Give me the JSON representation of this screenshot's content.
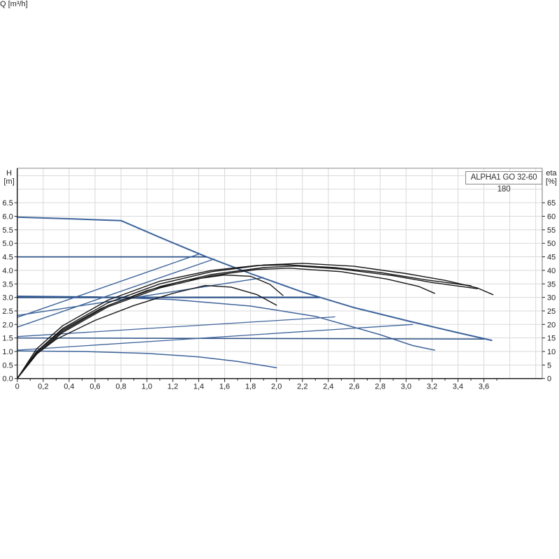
{
  "page": {
    "background": "#ffffff"
  },
  "chart_data": {
    "type": "line",
    "title": "ALPHA1 GO 32-60 180",
    "x_axis": {
      "label": "Q [m³/h]",
      "min": 0,
      "max": 4.05,
      "major_tick_step": 0.2,
      "minor_tick_step": 0.1,
      "tick_values": [
        0,
        0.2,
        0.4,
        0.6,
        0.8,
        1.0,
        1.2,
        1.4,
        1.6,
        1.8,
        2.0,
        2.2,
        2.4,
        2.6,
        2.8,
        3.0,
        3.2,
        3.4,
        3.6
      ],
      "tick_labels": [
        "0",
        "0,2",
        "0,4",
        "0,6",
        "0,8",
        "1,0",
        "1,2",
        "1,4",
        "1,6",
        "1,8",
        "2,0",
        "2,2",
        "2,4",
        "2,6",
        "2,8",
        "3,0",
        "3,2",
        "3,4",
        "3,6"
      ]
    },
    "y_axis_left": {
      "label": "H [m]",
      "label_line1": "H",
      "label_line2": "[m]",
      "min": 0,
      "max": 7.78,
      "tick_step": 0.5,
      "tick_values": [
        0,
        0.5,
        1.0,
        1.5,
        2.0,
        2.5,
        3.0,
        3.5,
        4.0,
        4.5,
        5.0,
        5.5,
        6.0,
        6.5
      ],
      "tick_labels": [
        "0.0",
        "0.5",
        "1.0",
        "1.5",
        "2.0",
        "2.5",
        "3.0",
        "3.5",
        "4.0",
        "4.5",
        "5.0",
        "5.5",
        "6.0",
        "6.5"
      ]
    },
    "y_axis_right": {
      "label": "eta [%]",
      "label_line1": "eta",
      "label_line2": "[%]",
      "min": 0,
      "max": 77.8,
      "tick_step": 5,
      "tick_values": [
        0,
        5,
        10,
        15,
        20,
        25,
        30,
        35,
        40,
        45,
        50,
        55,
        60,
        65
      ],
      "tick_labels": [
        "0",
        "5",
        "10",
        "15",
        "20",
        "25",
        "30",
        "35",
        "40",
        "45",
        "50",
        "55",
        "60",
        "65"
      ]
    },
    "grid": {
      "x_step": 0.2,
      "y_step": 0.5,
      "color": "#d9d9d9",
      "on": true
    },
    "legend": {
      "position": "none"
    },
    "colors": {
      "pump_curves": "#3d639b",
      "efficiency_curves": "#161616",
      "axis": "#222222",
      "frame": "#8c8c8c"
    },
    "series": [
      {
        "name": "speed-III-H",
        "type": "pump-curve",
        "axis": "left",
        "color": "#3d639b",
        "width": 2,
        "points": [
          [
            0,
            5.97
          ],
          [
            0.45,
            5.9
          ],
          [
            0.8,
            5.84
          ],
          [
            1.1,
            5.22
          ],
          [
            1.46,
            4.5
          ],
          [
            1.8,
            3.88
          ],
          [
            2.2,
            3.2
          ],
          [
            2.6,
            2.62
          ],
          [
            3.03,
            2.11
          ],
          [
            3.35,
            1.75
          ],
          [
            3.66,
            1.41
          ]
        ]
      },
      {
        "name": "speed-II-H",
        "type": "pump-curve",
        "axis": "left",
        "color": "#3d639b",
        "width": 1.5,
        "points": [
          [
            0,
            3.05
          ],
          [
            0.6,
            3.02
          ],
          [
            1.2,
            2.92
          ],
          [
            1.8,
            2.68
          ],
          [
            2.3,
            2.3
          ],
          [
            2.8,
            1.62
          ],
          [
            3.05,
            1.22
          ],
          [
            3.22,
            1.05
          ]
        ]
      },
      {
        "name": "speed-I-H",
        "type": "pump-curve",
        "axis": "left",
        "color": "#3d639b",
        "width": 1.5,
        "points": [
          [
            0,
            1.02
          ],
          [
            0.5,
            1.0
          ],
          [
            1.0,
            0.93
          ],
          [
            1.4,
            0.8
          ],
          [
            1.7,
            0.63
          ],
          [
            2.0,
            0.4
          ]
        ]
      },
      {
        "name": "const-pressure-4.5",
        "type": "setting-curve",
        "axis": "left",
        "color": "#2e5388",
        "width": 1.8,
        "points": [
          [
            0,
            4.5
          ],
          [
            1.46,
            4.5
          ]
        ]
      },
      {
        "name": "const-pressure-3.0",
        "type": "setting-curve",
        "axis": "left",
        "color": "#2e5388",
        "width": 2.2,
        "points": [
          [
            0,
            3.0
          ],
          [
            2.33,
            3.0
          ]
        ]
      },
      {
        "name": "const-pressure-1.5",
        "type": "setting-curve",
        "axis": "left",
        "color": "#2e5388",
        "width": 1.5,
        "points": [
          [
            0,
            1.5
          ],
          [
            3.6,
            1.46
          ]
        ]
      },
      {
        "name": "prop-pressure-3",
        "type": "setting-curve",
        "axis": "left",
        "color": "#3d639b",
        "width": 1.4,
        "points": [
          [
            0,
            2.26
          ],
          [
            1.4,
            4.6
          ]
        ]
      },
      {
        "name": "prop-pressure-2",
        "type": "setting-curve",
        "axis": "left",
        "color": "#3d639b",
        "width": 1.4,
        "points": [
          [
            0,
            1.9
          ],
          [
            1.52,
            4.42
          ]
        ]
      },
      {
        "name": "prop-pressure-mid",
        "type": "setting-curve",
        "axis": "left",
        "color": "#3d639b",
        "width": 1.4,
        "points": [
          [
            0,
            2.33
          ],
          [
            0.9,
            2.99
          ],
          [
            1.9,
            3.73
          ]
        ]
      },
      {
        "name": "prop-pressure-low-a",
        "type": "setting-curve",
        "axis": "left",
        "color": "#3d639b",
        "width": 1.3,
        "points": [
          [
            0,
            1.55
          ],
          [
            2.45,
            2.28
          ]
        ]
      },
      {
        "name": "prop-pressure-low-b",
        "type": "setting-curve",
        "axis": "left",
        "color": "#3d639b",
        "width": 1.3,
        "points": [
          [
            0,
            1.05
          ],
          [
            3.05,
            2.0
          ]
        ]
      },
      {
        "name": "eta-speed-III",
        "type": "efficiency-curve",
        "axis": "right",
        "color": "#161616",
        "width": 1.4,
        "points": [
          [
            0,
            0
          ],
          [
            0.15,
            10
          ],
          [
            0.35,
            18.5
          ],
          [
            0.7,
            28
          ],
          [
            1.1,
            35
          ],
          [
            1.5,
            39.5
          ],
          [
            1.9,
            42
          ],
          [
            2.2,
            42.6
          ],
          [
            2.6,
            41.5
          ],
          [
            3.0,
            38.8
          ],
          [
            3.3,
            36.3
          ],
          [
            3.55,
            33.5
          ],
          [
            3.67,
            31
          ]
        ]
      },
      {
        "name": "eta-curve-2",
        "type": "efficiency-curve",
        "axis": "right",
        "color": "#161616",
        "width": 1.4,
        "points": [
          [
            0,
            0
          ],
          [
            0.15,
            9.5
          ],
          [
            0.35,
            17.5
          ],
          [
            0.7,
            27
          ],
          [
            1.1,
            34
          ],
          [
            1.5,
            38.5
          ],
          [
            1.9,
            41
          ],
          [
            2.15,
            41.6
          ],
          [
            2.5,
            40.5
          ],
          [
            2.9,
            38
          ],
          [
            3.2,
            35.5
          ],
          [
            3.55,
            33.2
          ]
        ]
      },
      {
        "name": "eta-speed-II",
        "type": "efficiency-curve",
        "axis": "right",
        "color": "#161616",
        "width": 1.4,
        "points": [
          [
            0,
            0
          ],
          [
            0.15,
            9
          ],
          [
            0.35,
            17
          ],
          [
            0.7,
            26.5
          ],
          [
            1.1,
            33.5
          ],
          [
            1.5,
            38
          ],
          [
            1.85,
            40.3
          ],
          [
            2.1,
            40.8
          ],
          [
            2.5,
            39.5
          ],
          [
            2.85,
            36.8
          ],
          [
            3.1,
            34
          ],
          [
            3.22,
            31.5
          ]
        ]
      },
      {
        "name": "eta-curve-4",
        "type": "efficiency-curve",
        "axis": "right",
        "color": "#161616",
        "width": 1.4,
        "points": [
          [
            0,
            0
          ],
          [
            0.15,
            11
          ],
          [
            0.35,
            19.5
          ],
          [
            0.7,
            29
          ],
          [
            1.1,
            36
          ],
          [
            1.5,
            40
          ],
          [
            1.85,
            41.8
          ],
          [
            2.1,
            42
          ],
          [
            2.45,
            41
          ],
          [
            2.8,
            39.2
          ],
          [
            3.15,
            36.5
          ],
          [
            3.5,
            34.3
          ]
        ]
      },
      {
        "name": "eta-curve-5",
        "type": "efficiency-curve",
        "axis": "right",
        "color": "#161616",
        "width": 1.4,
        "points": [
          [
            0,
            0
          ],
          [
            0.15,
            10
          ],
          [
            0.35,
            18
          ],
          [
            0.65,
            26
          ],
          [
            1.0,
            32.5
          ],
          [
            1.3,
            36.3
          ],
          [
            1.6,
            38.3
          ],
          [
            1.8,
            37.8
          ],
          [
            1.95,
            34.8
          ],
          [
            2.05,
            30.7
          ]
        ]
      },
      {
        "name": "eta-speed-I",
        "type": "efficiency-curve",
        "axis": "right",
        "color": "#161616",
        "width": 1.4,
        "points": [
          [
            0,
            0
          ],
          [
            0.12,
            8
          ],
          [
            0.3,
            14.5
          ],
          [
            0.6,
            21.5
          ],
          [
            0.9,
            27
          ],
          [
            1.2,
            31.5
          ],
          [
            1.45,
            34.4
          ],
          [
            1.65,
            33.8
          ],
          [
            1.85,
            31
          ],
          [
            2.0,
            27.1
          ]
        ]
      }
    ]
  }
}
